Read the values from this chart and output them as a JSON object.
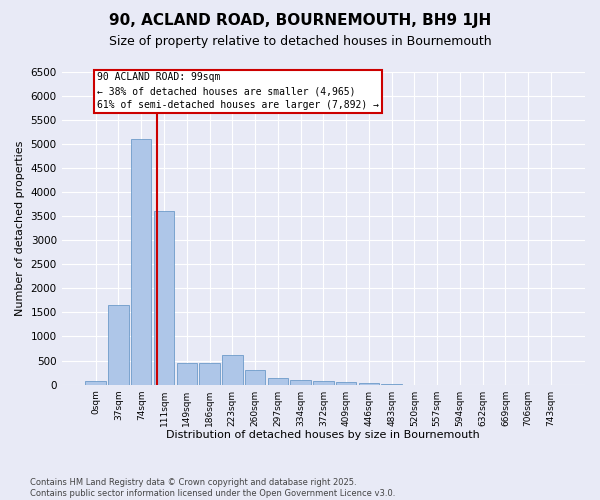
{
  "title": "90, ACLAND ROAD, BOURNEMOUTH, BH9 1JH",
  "subtitle": "Size of property relative to detached houses in Bournemouth",
  "xlabel": "Distribution of detached houses by size in Bournemouth",
  "ylabel": "Number of detached properties",
  "footnote1": "Contains HM Land Registry data © Crown copyright and database right 2025.",
  "footnote2": "Contains public sector information licensed under the Open Government Licence v3.0.",
  "bar_labels": [
    "0sqm",
    "37sqm",
    "74sqm",
    "111sqm",
    "149sqm",
    "186sqm",
    "223sqm",
    "260sqm",
    "297sqm",
    "334sqm",
    "372sqm",
    "409sqm",
    "446sqm",
    "483sqm",
    "520sqm",
    "557sqm",
    "594sqm",
    "632sqm",
    "669sqm",
    "706sqm",
    "743sqm"
  ],
  "bar_values": [
    70,
    1650,
    5100,
    3600,
    450,
    450,
    620,
    310,
    140,
    100,
    75,
    50,
    30,
    10,
    0,
    0,
    0,
    0,
    0,
    0,
    0
  ],
  "bar_color": "#aec6e8",
  "bar_edge_color": "#5a8fc2",
  "background_color": "#e8eaf6",
  "grid_color": "#ffffff",
  "vline_color": "#cc0000",
  "annotation_text": "90 ACLAND ROAD: 99sqm\n← 38% of detached houses are smaller (4,965)\n61% of semi-detached houses are larger (7,892) →",
  "annotation_box_color": "#cc0000",
  "ylim": [
    0,
    6500
  ],
  "yticks": [
    0,
    500,
    1000,
    1500,
    2000,
    2500,
    3000,
    3500,
    4000,
    4500,
    5000,
    5500,
    6000,
    6500
  ]
}
